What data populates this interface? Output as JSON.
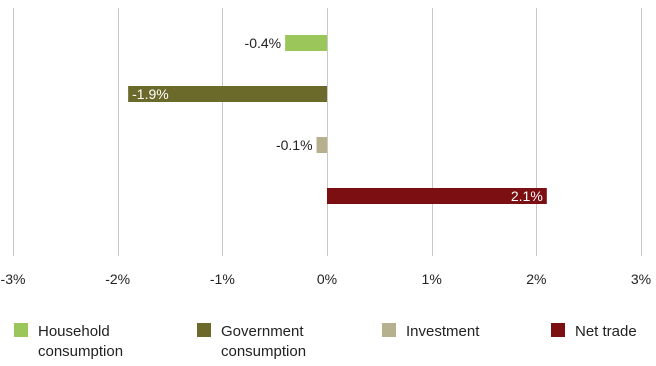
{
  "chart_data": {
    "type": "bar",
    "orientation": "horizontal",
    "categories": [
      "Household consumption",
      "Government consumption",
      "Investment",
      "Net trade"
    ],
    "values": [
      -0.4,
      -1.9,
      -0.1,
      2.1
    ],
    "data_labels": [
      "-0.4%",
      "-1.9%",
      "-0.1%",
      "2.1%"
    ],
    "colors": [
      "#9bc65a",
      "#6b6a2b",
      "#b7b08f",
      "#7b0f12"
    ],
    "xlim": [
      -3,
      3
    ],
    "xticks": [
      -3,
      -2,
      -1,
      0,
      1,
      2,
      3
    ],
    "xtick_labels": [
      "-3%",
      "-2%",
      "-1%",
      "0%",
      "1%",
      "2%",
      "3%"
    ],
    "grid": "vertical",
    "legend_position": "bottom",
    "title": "",
    "xlabel": "",
    "ylabel": ""
  },
  "legend": {
    "items": [
      {
        "line1": "Household",
        "line2": "consumption"
      },
      {
        "line1": "Government",
        "line2": "consumption"
      },
      {
        "line1": "Investment",
        "line2": ""
      },
      {
        "line1": "Net trade",
        "line2": ""
      }
    ]
  }
}
